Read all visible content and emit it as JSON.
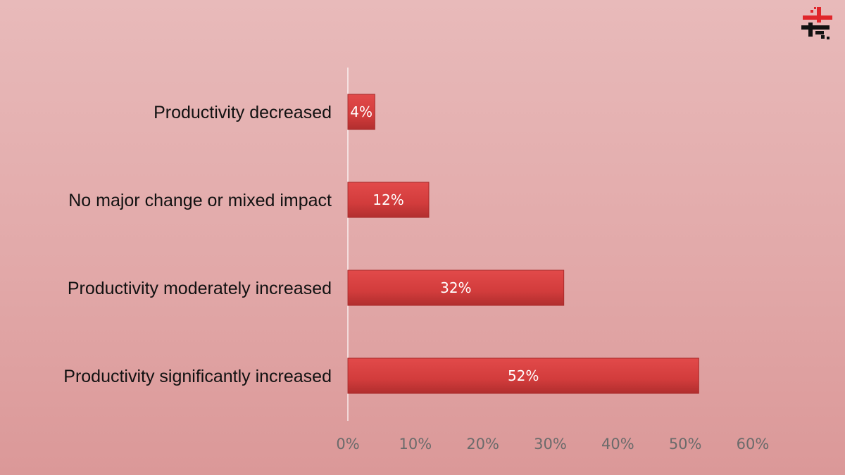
{
  "chart_data": {
    "type": "bar",
    "orientation": "horizontal",
    "categories": [
      "Productivity decreased",
      "No major change or mixed impact",
      "Productivity moderately increased",
      "Productivity significantly increased"
    ],
    "values": [
      4,
      12,
      32,
      52
    ],
    "data_labels": [
      "4%",
      "12%",
      "32%",
      "52%"
    ],
    "xlim": [
      0,
      60
    ],
    "x_ticks": [
      0,
      10,
      20,
      30,
      40,
      50,
      60
    ],
    "x_tick_labels": [
      "0%",
      "10%",
      "20%",
      "30%",
      "40%",
      "50%",
      "60%"
    ],
    "title": "",
    "xlabel": "",
    "ylabel": "",
    "grid": false,
    "legend": "none",
    "bar_color": "#d23c3c"
  },
  "logo": {
    "name": "brand-logo",
    "colors": [
      "#e0262b",
      "#111111"
    ]
  }
}
